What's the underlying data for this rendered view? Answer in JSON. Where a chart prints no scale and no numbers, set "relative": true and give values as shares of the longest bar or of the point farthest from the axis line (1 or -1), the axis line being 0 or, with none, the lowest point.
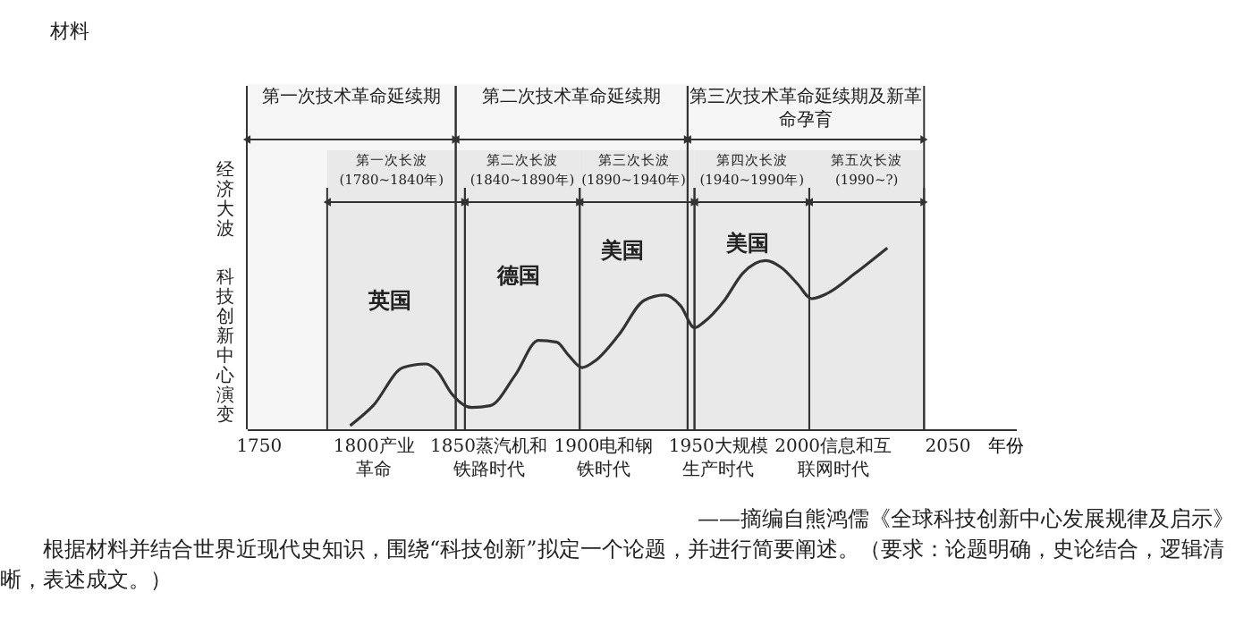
{
  "chart_data": {
    "type": "line",
    "relative": true,
    "xlabel": "年份",
    "ylabel": "科技创新中心演变",
    "x": [
      1790,
      1800,
      1813,
      1823,
      1828,
      1834,
      1843,
      1851,
      1862,
      1872,
      1880,
      1885,
      1891,
      1897,
      1907,
      1918,
      1927,
      1934,
      1940,
      1944,
      1953,
      1961,
      1971,
      1978,
      1985,
      1991,
      1998,
      2010,
      2024
    ],
    "values": [
      0.02,
      0.13,
      0.34,
      0.36,
      0.32,
      0.2,
      0.12,
      0.13,
      0.3,
      0.49,
      0.48,
      0.41,
      0.34,
      0.38,
      0.52,
      0.71,
      0.74,
      0.68,
      0.56,
      0.59,
      0.71,
      0.86,
      0.93,
      0.89,
      0.8,
      0.72,
      0.75,
      0.86,
      1
    ],
    "color": "#333333",
    "marker": "none",
    "line_style": "solid",
    "grid": false,
    "xlim": [
      1745,
      2080
    ],
    "xticks": [
      1750,
      {
        "value": 1800,
        "label": "1800产业革命"
      },
      {
        "value": 1850,
        "label": "1850蒸汽机和铁路时代"
      },
      {
        "value": 1900,
        "label": "1900电和钢铁时代"
      },
      {
        "value": 1950,
        "label": "1950大规模生产时代"
      },
      {
        "value": 2000,
        "label": "2000信息和互联网时代"
      },
      2050
    ],
    "bands": [
      {
        "axis": "x",
        "from": 1745,
        "to": 1836,
        "label": "第一次技术革命延续期",
        "color": "#f6f6f6"
      },
      {
        "axis": "x",
        "from": 1836,
        "to": 1937,
        "label": "第二次技术革命延续期",
        "color": "#f6f6f6"
      },
      {
        "axis": "x",
        "from": 1937,
        "to": 2040,
        "label": "第三次技术革命延续期及新革命孕育",
        "color": "#f6f6f6"
      },
      {
        "axis": "x",
        "from": 1780,
        "to": 1840,
        "label": "第一次长波 (1780~1840年)",
        "color": "#e9e9e9"
      },
      {
        "axis": "x",
        "from": 1840,
        "to": 1890,
        "label": "第二次长波 (1840~1890年)",
        "color": "#e9e9e9"
      },
      {
        "axis": "x",
        "from": 1890,
        "to": 1940,
        "label": "第三次长波 (1890~1940年)",
        "color": "#e9e9e9"
      },
      {
        "axis": "x",
        "from": 1940,
        "to": 1990,
        "label": "第四次长波 (1940~1990年)",
        "color": "#e9e9e9"
      },
      {
        "axis": "x",
        "from": 1990,
        "to": 2040,
        "label": "第五次长波 (1990~?)",
        "color": "#e9e9e9"
      }
    ],
    "annotations": [
      "材料",
      "经济大波",
      "——摘编自熊鸿儒《全球科技创新中心发展规律及启示》",
      "根据材料并结合世界近现代史知识，围绕“科技创新”拟定一个论题，并进行简要阐述。（要求：论题明确，史论结合，逻辑清晰，表述成文。）",
      "英国",
      "德国",
      "美国",
      "美国"
    ]
  }
}
